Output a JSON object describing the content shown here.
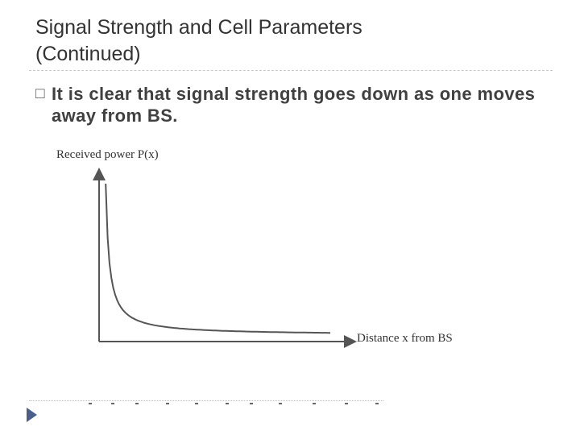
{
  "slide": {
    "title_line1": "Signal Strength and Cell Parameters",
    "title_line2": "(Continued)",
    "bullet_marker": "□",
    "bullet_text": "It is clear that signal strength goes down as one moves away from BS."
  },
  "chart_data": {
    "type": "line",
    "ylabel": "Received power P(x)",
    "xlabel": "Distance x from BS",
    "axis_color": "#555555",
    "series": [
      {
        "x": [
          0.15,
          0.5,
          1,
          1.5,
          2,
          3,
          4,
          5,
          6,
          7,
          8,
          9,
          10
        ],
        "y": [
          1.0,
          0.3,
          0.15,
          0.1,
          0.075,
          0.05,
          0.0375,
          0.03,
          0.025,
          0.0214,
          0.0188,
          0.0167,
          0.015
        ]
      }
    ]
  }
}
